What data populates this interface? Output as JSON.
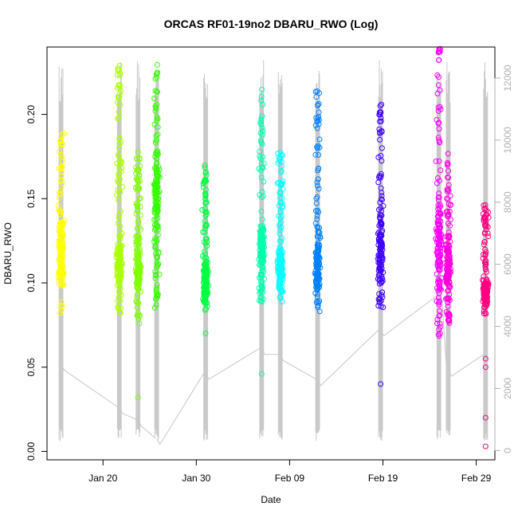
{
  "chart_data": {
    "type": "scatter",
    "title": "ORCAS RF01-19no2 DBARU_RWO (Log)",
    "xlabel": "Date",
    "ylabel": "DBARU_RWO",
    "y_ticks": [
      "0.00",
      "0.05",
      "0.10",
      "0.15",
      "0.20"
    ],
    "y_tick_values": [
      0,
      0.05,
      0.1,
      0.15,
      0.2
    ],
    "y_right_ticks": [
      "0",
      "2000",
      "4000",
      "6000",
      "8000",
      "10000",
      "12000"
    ],
    "y_right_tick_values": [
      0,
      2000,
      4000,
      6000,
      8000,
      10000,
      12000
    ],
    "x_ticks": [
      "Jan 20",
      "Jan 30",
      "Feb 09",
      "Feb 19",
      "Feb 29"
    ],
    "x_tick_dates": [
      "2016-01-20",
      "2016-01-30",
      "2016-02-09",
      "2016-02-19",
      "2016-02-29"
    ],
    "xlim": [
      "2016-01-14",
      "2016-03-02"
    ],
    "ylim": [
      -0.005,
      0.24
    ],
    "y_right_lim": [
      -300,
      13000
    ],
    "altitude_line_color": "#c8c8c8",
    "flights": [
      {
        "date": "2016-01-15T12:00",
        "color": "#ffff00",
        "ymin": 0.08,
        "ymax": 0.19,
        "ymid": 0.12,
        "outliers": [],
        "alt_end": 2800
      },
      {
        "date": "2016-01-21T18:00",
        "color": "#aaff00",
        "ymin": 0.08,
        "ymax": 0.235,
        "ymid": 0.11,
        "outliers": [],
        "alt_end": 1400
      },
      {
        "date": "2016-01-23T18:00",
        "color": "#80ff00",
        "ymin": 0.075,
        "ymax": 0.18,
        "ymid": 0.11,
        "outliers": [
          0.032
        ],
        "alt_end": 1000
      },
      {
        "date": "2016-01-25T18:00",
        "color": "#33ff00",
        "ymin": 0.085,
        "ymax": 0.23,
        "ymid": 0.15,
        "outliers": [],
        "alt_end": 400
      },
      {
        "date": "2016-01-31T00:00",
        "color": "#00ff40",
        "ymin": 0.08,
        "ymax": 0.17,
        "ymid": 0.1,
        "outliers": [
          0.07
        ],
        "alt_end": 2500
      },
      {
        "date": "2016-02-06T00:00",
        "color": "#00ffaa",
        "ymin": 0.088,
        "ymax": 0.215,
        "ymid": 0.12,
        "outliers": [
          0.046
        ],
        "alt_end": 3300
      },
      {
        "date": "2016-02-08T00:00",
        "color": "#00ffff",
        "ymin": 0.088,
        "ymax": 0.178,
        "ymid": 0.11,
        "outliers": [],
        "alt_end": 3100
      },
      {
        "date": "2016-02-12T00:00",
        "color": "#0080ff",
        "ymin": 0.082,
        "ymax": 0.214,
        "ymid": 0.11,
        "outliers": [],
        "alt_end": 2300
      },
      {
        "date": "2016-02-18T18:00",
        "color": "#4000ff",
        "ymin": 0.08,
        "ymax": 0.21,
        "ymid": 0.12,
        "outliers": [
          0.04
        ],
        "alt_end": 3900
      },
      {
        "date": "2016-02-25T00:00",
        "color": "#ff00ff",
        "ymin": 0.068,
        "ymax": 0.24,
        "ymid": 0.12,
        "outliers": [],
        "alt_end": 5000
      },
      {
        "date": "2016-02-26T00:00",
        "color": "#ff00dd",
        "ymin": 0.072,
        "ymax": 0.178,
        "ymid": 0.11,
        "outliers": [],
        "alt_end": 2600
      },
      {
        "date": "2016-03-01T00:00",
        "color": "#ff0080",
        "ymin": 0.08,
        "ymax": 0.148,
        "ymid": 0.095,
        "outliers": [
          0.003,
          0.02,
          0.05,
          0.055
        ],
        "alt_end": 3100
      }
    ]
  }
}
